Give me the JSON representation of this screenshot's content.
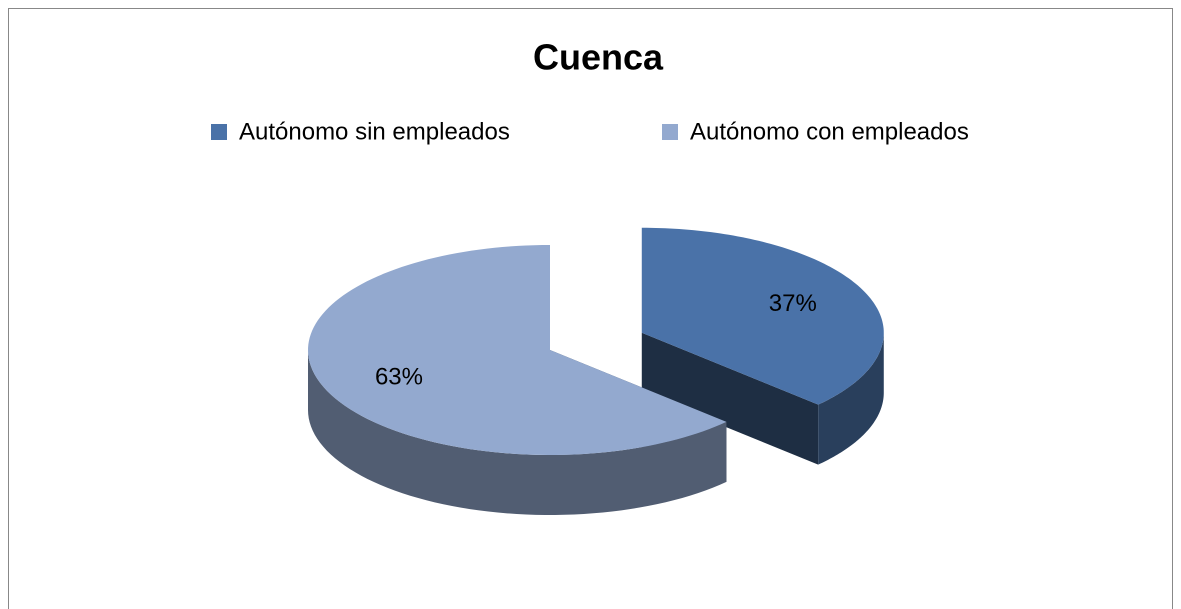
{
  "chart_data": {
    "type": "pie",
    "title": "Cuenca",
    "categories": [
      "Autónomo sin empleados",
      "Autónomo con empleados"
    ],
    "values": [
      37,
      63
    ],
    "value_labels": [
      "37%",
      "63%"
    ],
    "colors": [
      "#4a72a8",
      "#93a9cf"
    ],
    "legend": "top",
    "explode": [
      0
    ]
  }
}
